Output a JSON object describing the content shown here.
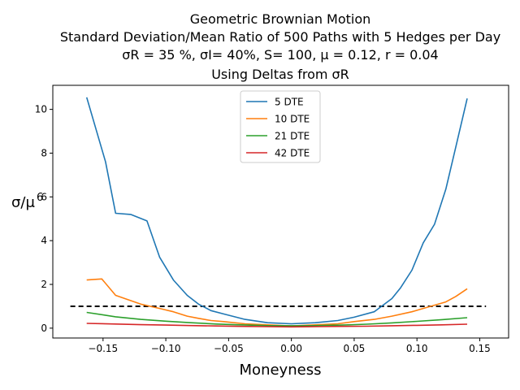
{
  "chart_data": {
    "type": "line",
    "title_lines": [
      "Geometric Brownian Motion",
      "Standard Deviation/Mean Ratio of 500 Paths with 5 Hedges per Day",
      "σR = 35 %, σI= 40%, S= 100, μ = 0.12, r = 0.04",
      "Using Deltas from σR"
    ],
    "xlabel": "Moneyness",
    "ylabel": "σ/μ",
    "ylabel_superscript": "6",
    "xlim": [
      -0.19,
      0.173
    ],
    "ylim": [
      -0.45,
      11.1
    ],
    "xticks": [
      -0.15,
      -0.1,
      -0.05,
      0.0,
      0.05,
      0.1,
      0.15
    ],
    "xtick_labels": [
      "−0.15",
      "−0.10",
      "−0.05",
      "0.00",
      "0.05",
      "0.10",
      "0.15"
    ],
    "yticks": [
      0,
      2,
      4,
      6,
      8,
      10
    ],
    "ytick_labels": [
      "0",
      "2",
      "4",
      "6",
      "8",
      "10"
    ],
    "legend_position": "top-center",
    "grid": false,
    "reference_line": {
      "y": 1.0,
      "x_start": -0.176,
      "x_end": 0.155,
      "color": "#000000",
      "style": "dashed"
    },
    "series": [
      {
        "name": "5 DTE",
        "color": "#1f77b4",
        "x": [
          -0.163,
          -0.148,
          -0.14,
          -0.128,
          -0.115,
          -0.105,
          -0.094,
          -0.083,
          -0.074,
          -0.064,
          -0.054,
          -0.037,
          -0.019,
          0.0,
          0.019,
          0.037,
          0.05,
          0.066,
          0.08,
          0.087,
          0.096,
          0.105,
          0.114,
          0.123,
          0.131,
          0.14
        ],
        "y": [
          10.55,
          7.6,
          5.25,
          5.2,
          4.9,
          3.25,
          2.2,
          1.5,
          1.1,
          0.8,
          0.65,
          0.4,
          0.25,
          0.2,
          0.25,
          0.35,
          0.5,
          0.75,
          1.35,
          1.85,
          2.65,
          3.9,
          4.75,
          6.35,
          8.3,
          10.5
        ]
      },
      {
        "name": "10 DTE",
        "color": "#ff7f0e",
        "x": [
          -0.163,
          -0.151,
          -0.14,
          -0.13,
          -0.12,
          -0.105,
          -0.094,
          -0.083,
          -0.074,
          -0.064,
          -0.054,
          -0.037,
          -0.019,
          0.0,
          0.019,
          0.037,
          0.05,
          0.066,
          0.08,
          0.096,
          0.105,
          0.114,
          0.123,
          0.131,
          0.14
        ],
        "y": [
          2.2,
          2.25,
          1.5,
          1.3,
          1.1,
          0.9,
          0.75,
          0.55,
          0.45,
          0.35,
          0.3,
          0.2,
          0.15,
          0.1,
          0.15,
          0.2,
          0.3,
          0.4,
          0.55,
          0.75,
          0.9,
          1.05,
          1.2,
          1.45,
          1.8
        ]
      },
      {
        "name": "21 DTE",
        "color": "#2ca02c",
        "x": [
          -0.163,
          -0.14,
          -0.12,
          -0.1,
          -0.08,
          -0.06,
          -0.04,
          -0.02,
          0.0,
          0.02,
          0.04,
          0.06,
          0.08,
          0.1,
          0.12,
          0.14
        ],
        "y": [
          0.72,
          0.52,
          0.4,
          0.32,
          0.25,
          0.19,
          0.15,
          0.12,
          0.11,
          0.12,
          0.14,
          0.18,
          0.24,
          0.31,
          0.39,
          0.48
        ]
      },
      {
        "name": "42 DTE",
        "color": "#d62728",
        "x": [
          -0.163,
          -0.14,
          -0.12,
          -0.1,
          -0.08,
          -0.06,
          -0.04,
          -0.02,
          0.0,
          0.02,
          0.04,
          0.06,
          0.08,
          0.1,
          0.12,
          0.14
        ],
        "y": [
          0.22,
          0.19,
          0.16,
          0.14,
          0.12,
          0.1,
          0.08,
          0.07,
          0.06,
          0.07,
          0.08,
          0.09,
          0.11,
          0.13,
          0.15,
          0.18
        ]
      }
    ]
  }
}
